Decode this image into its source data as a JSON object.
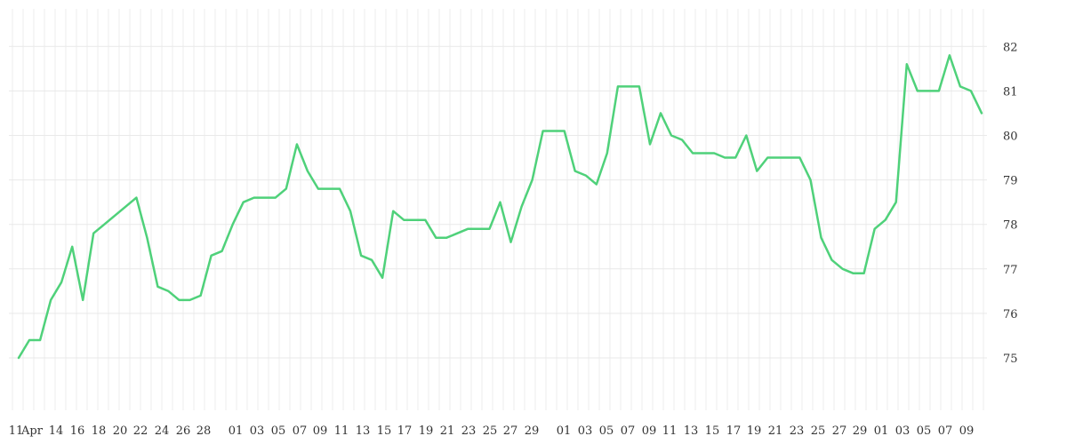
{
  "chart_data": {
    "type": "line",
    "title": "",
    "xlabel": "",
    "ylabel": "",
    "ylim": [
      74,
      82.8
    ],
    "y_ticks": [
      75,
      76,
      77,
      78,
      79,
      80,
      81,
      82
    ],
    "y_axis_position": "right",
    "grid": true,
    "line_color": "#4fd17a",
    "x_tick_labels": [
      "11",
      "Apr",
      "14",
      "16",
      "18",
      "20",
      "22",
      "24",
      "26",
      "28",
      "01",
      "03",
      "05",
      "07",
      "09",
      "11",
      "13",
      "15",
      "17",
      "19",
      "21",
      "23",
      "25",
      "27",
      "29",
      "01",
      "03",
      "05",
      "07",
      "09",
      "11",
      "13",
      "15",
      "17",
      "19",
      "21",
      "23",
      "25",
      "27",
      "29",
      "01",
      "03",
      "05",
      "07",
      "09"
    ],
    "series": [
      {
        "values": [
          75.0,
          75.4,
          75.4,
          76.3,
          76.7,
          77.5,
          76.3,
          77.8,
          78.0,
          78.2,
          78.4,
          78.6,
          77.7,
          76.6,
          76.5,
          76.3,
          76.3,
          76.4,
          77.3,
          77.4,
          78.0,
          78.5,
          78.6,
          78.6,
          78.6,
          78.8,
          79.8,
          79.2,
          78.8,
          78.8,
          78.8,
          78.3,
          77.3,
          77.2,
          76.8,
          78.3,
          78.1,
          78.1,
          78.1,
          77.7,
          77.7,
          77.8,
          77.9,
          77.9,
          77.9,
          78.5,
          77.6,
          78.4,
          79.0,
          80.1,
          80.1,
          80.1,
          79.2,
          79.1,
          78.9,
          79.6,
          81.1,
          81.1,
          81.1,
          79.8,
          80.5,
          80.0,
          79.9,
          79.6,
          79.6,
          79.6,
          79.5,
          79.5,
          80.0,
          79.2,
          79.5,
          79.5,
          79.5,
          79.5,
          79.0,
          77.7,
          77.2,
          77.0,
          76.9,
          76.9,
          77.9,
          78.1,
          78.5,
          81.6,
          81.0,
          81.0,
          81.0,
          81.8,
          81.1,
          81.0,
          80.5
        ]
      }
    ]
  }
}
